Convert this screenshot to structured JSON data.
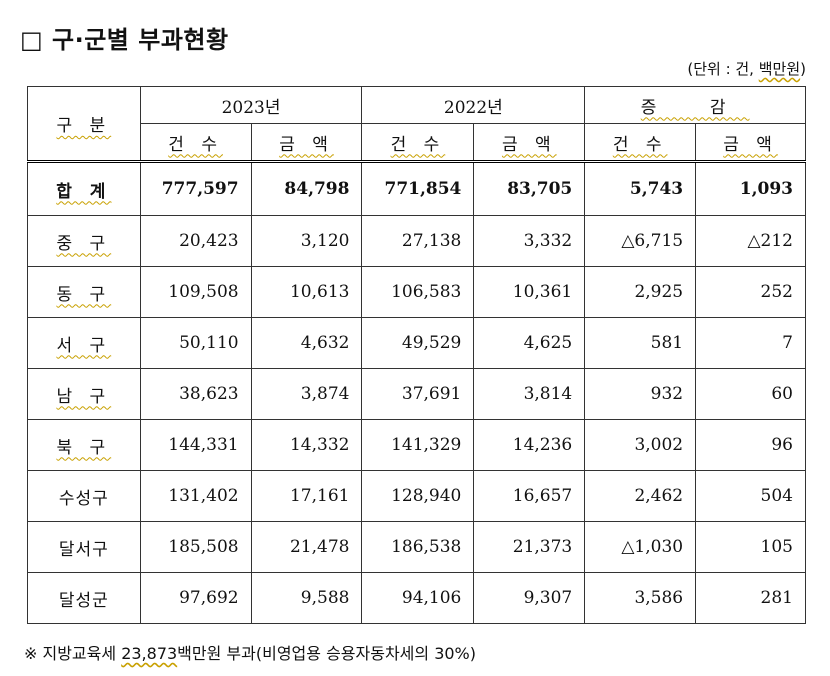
{
  "title": "□ 구·군별 부과현황",
  "unit": {
    "prefix": "(단위 : 건, ",
    "unit_money": "백만원",
    "suffix": ")"
  },
  "header": {
    "col_group": "구 분",
    "years": [
      "2023년",
      "2022년"
    ],
    "diff": "증 감",
    "sub": [
      "건 수",
      "금 액",
      "건 수",
      "금 액",
      "건 수",
      "금 액"
    ]
  },
  "rows": [
    {
      "label": "합 계",
      "values": [
        "777,597",
        "84,798",
        "771,854",
        "83,705",
        "5,743",
        "1,093"
      ]
    },
    {
      "label": "중 구",
      "values": [
        "20,423",
        "3,120",
        "27,138",
        "3,332",
        "△6,715",
        "△212"
      ]
    },
    {
      "label": "동 구",
      "values": [
        "109,508",
        "10,613",
        "106,583",
        "10,361",
        "2,925",
        "252"
      ]
    },
    {
      "label": "서 구",
      "values": [
        "50,110",
        "4,632",
        "49,529",
        "4,625",
        "581",
        "7"
      ]
    },
    {
      "label": "남 구",
      "values": [
        "38,623",
        "3,874",
        "37,691",
        "3,814",
        "932",
        "60"
      ]
    },
    {
      "label": "북 구",
      "values": [
        "144,331",
        "14,332",
        "141,329",
        "14,236",
        "3,002",
        "96"
      ]
    },
    {
      "label": "수성구",
      "values": [
        "131,402",
        "17,161",
        "128,940",
        "16,657",
        "2,462",
        "504"
      ]
    },
    {
      "label": "달서구",
      "values": [
        "185,508",
        "21,478",
        "186,538",
        "21,373",
        "△1,030",
        "105"
      ]
    },
    {
      "label": "달성군",
      "values": [
        "97,692",
        "9,588",
        "94,106",
        "9,307",
        "3,586",
        "281"
      ]
    }
  ],
  "note": {
    "prefix": "※ 지방교육세 ",
    "amount": "23,873",
    "suffix": "백만원 부과(비영업용 승용자동차세의 30%)"
  }
}
